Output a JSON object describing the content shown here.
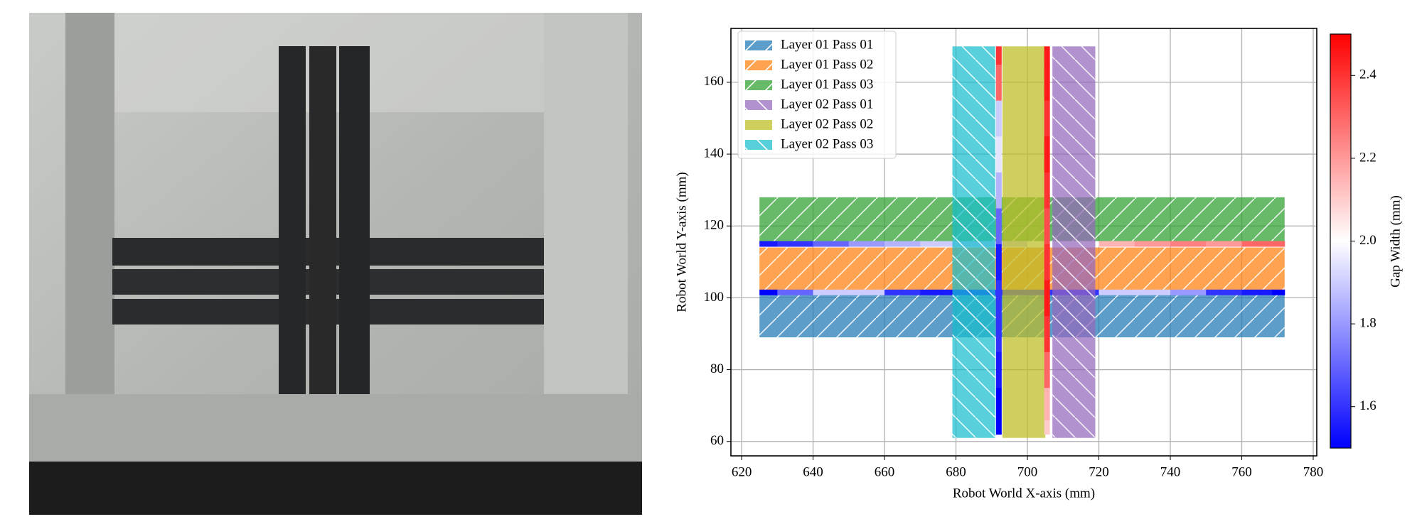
{
  "chart_data": {
    "type": "strip",
    "xlabel": "Robot World X-axis (mm)",
    "ylabel": "Robot World Y-axis (mm)",
    "xlim": [
      617,
      781
    ],
    "ylim": [
      56,
      175
    ],
    "xticks": [
      620,
      640,
      660,
      680,
      700,
      720,
      740,
      760,
      780
    ],
    "yticks": [
      60,
      80,
      100,
      120,
      140,
      160
    ],
    "grid": true,
    "legend": "upper left",
    "alpha": 0.72,
    "series": [
      {
        "name": "Layer 01 Pass 01",
        "color": "#1f77b4",
        "x": [
          625,
          772
        ],
        "y": [
          89,
          101
        ],
        "hatch": "/"
      },
      {
        "name": "Layer 01 Pass 02",
        "color": "#ff7f0e",
        "x": [
          625,
          772
        ],
        "y": [
          102,
          114
        ],
        "hatch": "/"
      },
      {
        "name": "Layer 01 Pass 03",
        "color": "#2ca02c",
        "x": [
          625,
          772
        ],
        "y": [
          115.5,
          128
        ],
        "hatch": "/"
      },
      {
        "name": "Layer 02 Pass 01",
        "color": "#9467bd",
        "x": [
          707,
          719
        ],
        "y": [
          61,
          170
        ],
        "hatch": "\\"
      },
      {
        "name": "Layer 02 Pass 02",
        "color": "#bcbd22",
        "x": [
          693,
          705
        ],
        "y": [
          61,
          170
        ]
      },
      {
        "name": "Layer 02 Pass 03",
        "color": "#17becf",
        "x": [
          679,
          691
        ],
        "y": [
          61,
          170
        ],
        "hatch": "\\"
      }
    ],
    "seams": [
      {
        "y": 101.5,
        "x": [
          625,
          635,
          645,
          655,
          665,
          675,
          685,
          695,
          705,
          715,
          725,
          735,
          745,
          755,
          765,
          772
        ],
        "values": [
          1.5,
          1.7,
          1.9,
          1.9,
          1.6,
          1.55,
          1.55,
          1.6,
          1.6,
          1.6,
          1.9,
          1.9,
          1.8,
          1.6,
          1.55,
          1.5
        ]
      },
      {
        "y": 115,
        "x": [
          625,
          635,
          645,
          655,
          665,
          675,
          685,
          695,
          705,
          715,
          725,
          735,
          745,
          755,
          765,
          772
        ],
        "values": [
          1.55,
          1.6,
          1.7,
          1.8,
          1.85,
          1.9,
          1.9,
          1.9,
          2.0,
          2.0,
          2.15,
          2.2,
          2.25,
          2.2,
          2.3,
          2.3
        ]
      },
      {
        "x": 692,
        "y": [
          62,
          70,
          80,
          90,
          100,
          110,
          120,
          130,
          140,
          150,
          160,
          170
        ],
        "values": [
          1.5,
          1.5,
          1.55,
          1.6,
          1.6,
          1.55,
          1.7,
          1.85,
          1.95,
          1.9,
          2.3,
          2.4
        ]
      },
      {
        "x": 705.5,
        "y": [
          62,
          70,
          80,
          90,
          100,
          110,
          120,
          130,
          140,
          150,
          160,
          170
        ],
        "values": [
          2.1,
          2.15,
          2.3,
          2.4,
          2.45,
          2.4,
          2.35,
          2.4,
          2.45,
          2.4,
          2.45,
          2.45
        ]
      }
    ],
    "colorbar": {
      "label": "Gap Width (mm)",
      "clim": [
        1.5,
        2.5
      ],
      "ticks": [
        1.6,
        1.8,
        {
          "value": 2,
          "label": "2.0"
        },
        2.2,
        2.4
      ]
    }
  }
}
